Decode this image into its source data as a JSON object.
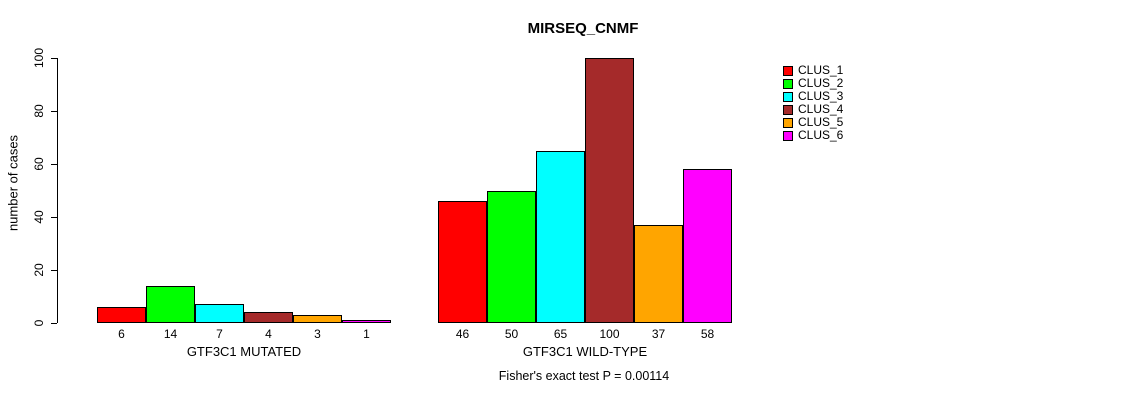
{
  "title": "MIRSEQ_CNMF",
  "chart_data": {
    "type": "bar",
    "title": "MIRSEQ_CNMF",
    "xlabel": "",
    "ylabel": "number of cases",
    "ylim": [
      0,
      100
    ],
    "yticks": [
      0,
      20,
      40,
      60,
      80,
      100
    ],
    "grid": false,
    "legend_position": "top-right",
    "annotation": "Fisher's exact test P = 0.00114",
    "series": [
      {
        "name": "CLUS_1",
        "color": "#FF0000"
      },
      {
        "name": "CLUS_2",
        "color": "#00FF00"
      },
      {
        "name": "CLUS_3",
        "color": "#00FFFF"
      },
      {
        "name": "CLUS_4",
        "color": "#A52A2A"
      },
      {
        "name": "CLUS_5",
        "color": "#FFA500"
      },
      {
        "name": "CLUS_6",
        "color": "#FF00FF"
      }
    ],
    "groups": [
      {
        "label": "GTF3C1 MUTATED",
        "values": [
          6,
          14,
          7,
          4,
          3,
          1
        ],
        "bar_labels": [
          "6",
          "14",
          "7",
          "4",
          "3",
          "1"
        ]
      },
      {
        "label": "GTF3C1 WILD-TYPE",
        "values": [
          46,
          50,
          65,
          100,
          37,
          58
        ],
        "bar_labels": [
          "46",
          "50",
          "65",
          "100",
          "37",
          "58"
        ]
      }
    ]
  }
}
